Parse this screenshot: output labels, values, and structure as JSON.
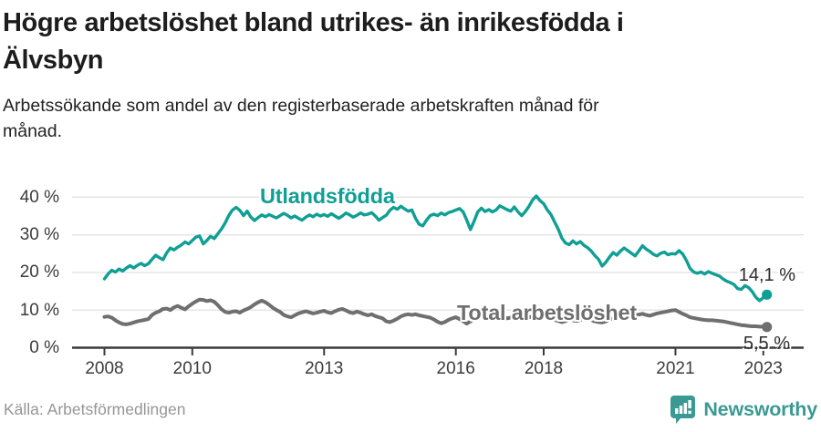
{
  "header": {
    "title": "Högre arbetslöshet bland utrikes- än inrikesfödda i Älvsbyn",
    "title_lines": [
      "Högre arbetslöshet bland utrikes- än inrikesfödda i",
      "Älvsbyn"
    ],
    "subtitle": "Arbetssökande som andel av den registerbaserade arbetskraften månad för månad.",
    "subtitle_lines": [
      "Arbetssökande som andel av den registerbaserade arbetskraften månad för",
      "månad."
    ]
  },
  "footer": {
    "source": "Källa: Arbetsförmedlingen",
    "brand": "Newsworthy"
  },
  "colors": {
    "series_foreign": "#0f9f95",
    "series_total": "#6f6f6f",
    "end_label_text": "#2b2b2b",
    "axis": "#3b3b3b",
    "grid": "#e3e3e3",
    "brand_teal": "#3a9a93",
    "title_text": "#1d1d1d",
    "muted_text": "#969696"
  },
  "chart_data": {
    "type": "line",
    "title": "Högre arbetslöshet bland utrikes- än inrikesfödda i Älvsbyn",
    "subtitle": "Arbetssökande som andel av den registerbaserade arbetskraften månad för månad.",
    "frequency": "monthly",
    "x_start": "2008-01",
    "x_end": "2023-02",
    "xlabel": "",
    "ylabel": "",
    "ylim": [
      0,
      43
    ],
    "grid": "horizontal",
    "legend_position": "inline-annotations",
    "y_tick_values": [
      0,
      10,
      20,
      30,
      40
    ],
    "y_tick_labels": [
      "0 %",
      "10 %",
      "20 %",
      "30 %",
      "40 %"
    ],
    "x_tick_values": [
      2008,
      2010,
      2013,
      2016,
      2018,
      2021,
      2023
    ],
    "x_tick_labels": [
      "2008",
      "2010",
      "2013",
      "2016",
      "2018",
      "2021",
      "2023"
    ],
    "series": [
      {
        "name": "Utlandsfödda",
        "color": "#0f9f95",
        "end_value": 14.1,
        "end_label": "14,1 %",
        "values": [
          18.3,
          19.6,
          20.6,
          20.1,
          20.9,
          20.4,
          21.2,
          21.8,
          21.2,
          21.9,
          22.4,
          21.8,
          22.3,
          23.5,
          24.6,
          23.9,
          23.4,
          25.2,
          26.5,
          26.0,
          26.7,
          27.3,
          28.1,
          27.6,
          28.5,
          29.4,
          29.7,
          27.6,
          28.5,
          29.6,
          29.0,
          30.3,
          31.6,
          33.2,
          35.2,
          36.6,
          37.3,
          36.5,
          35.1,
          36.3,
          34.7,
          33.8,
          34.6,
          35.3,
          34.8,
          35.4,
          34.9,
          34.5,
          35.1,
          35.7,
          35.2,
          34.5,
          35.0,
          34.4,
          33.9,
          34.7,
          35.3,
          34.8,
          35.5,
          35.0,
          35.4,
          34.9,
          35.6,
          35.0,
          34.4,
          35.0,
          35.8,
          35.3,
          34.7,
          35.2,
          35.8,
          35.3,
          35.5,
          35.9,
          35.0,
          33.9,
          34.6,
          35.2,
          36.5,
          37.3,
          36.8,
          37.6,
          36.9,
          36.3,
          36.6,
          34.4,
          32.8,
          32.4,
          33.9,
          35.1,
          35.5,
          35.1,
          35.8,
          35.3,
          35.9,
          36.2,
          36.6,
          37.0,
          36.1,
          33.9,
          31.4,
          33.6,
          36.1,
          37.1,
          36.2,
          36.7,
          36.1,
          36.6,
          37.7,
          37.2,
          36.7,
          36.3,
          37.4,
          36.1,
          35.1,
          36.2,
          37.6,
          39.3,
          40.3,
          39.1,
          38.3,
          36.6,
          35.4,
          33.4,
          31.5,
          29.1,
          27.8,
          27.4,
          28.4,
          27.6,
          28.2,
          27.2,
          26.6,
          25.7,
          24.5,
          23.5,
          21.7,
          22.7,
          24.1,
          25.3,
          24.6,
          25.7,
          26.5,
          25.8,
          25.1,
          24.4,
          25.7,
          27.1,
          26.2,
          25.6,
          24.8,
          24.4,
          25.1,
          25.4,
          24.7,
          25.0,
          24.9,
          25.8,
          24.9,
          23.2,
          21.1,
          20.1,
          19.8,
          20.1,
          19.6,
          20.2,
          19.8,
          19.4,
          19.1,
          18.3,
          17.7,
          17.3,
          16.8,
          15.7,
          15.5,
          16.5,
          16.0,
          14.9,
          13.4,
          12.5,
          13.3,
          14.1
        ]
      },
      {
        "name": "Total arbetslöshet",
        "color": "#6f6f6f",
        "end_value": 5.5,
        "end_label": "5,5 %",
        "values": [
          8.2,
          8.3,
          8.0,
          7.3,
          6.7,
          6.3,
          6.2,
          6.4,
          6.7,
          7.0,
          7.2,
          7.4,
          7.6,
          8.7,
          9.3,
          9.7,
          10.3,
          10.4,
          10.0,
          10.7,
          11.1,
          10.6,
          10.2,
          11.0,
          11.7,
          12.3,
          12.8,
          12.7,
          12.4,
          12.6,
          12.2,
          11.3,
          10.2,
          9.5,
          9.3,
          9.6,
          9.7,
          9.3,
          9.9,
          10.3,
          10.8,
          11.5,
          12.1,
          12.5,
          12.1,
          11.4,
          10.6,
          10.0,
          9.5,
          8.7,
          8.3,
          8.1,
          8.6,
          9.1,
          9.4,
          9.7,
          9.4,
          9.1,
          9.3,
          9.6,
          9.8,
          9.4,
          9.2,
          9.7,
          10.1,
          10.3,
          9.9,
          9.4,
          9.2,
          9.6,
          9.3,
          8.9,
          8.6,
          8.9,
          8.4,
          8.1,
          7.8,
          7.0,
          6.8,
          7.2,
          7.7,
          8.3,
          8.7,
          8.9,
          8.7,
          8.9,
          8.6,
          8.4,
          8.2,
          8.0,
          7.5,
          6.9,
          6.5,
          6.8,
          7.4,
          7.8,
          8.1,
          7.6,
          7.1,
          6.4,
          7.0,
          7.7,
          8.1,
          8.4,
          8.1,
          7.8,
          8.0,
          8.2,
          8.4,
          8.1,
          7.8,
          8.0,
          8.3,
          7.9,
          7.5,
          7.8,
          8.1,
          8.3,
          8.0,
          7.7,
          7.9,
          8.2,
          7.8,
          7.4,
          7.1,
          6.8,
          7.1,
          7.5,
          7.3,
          7.1,
          7.4,
          7.6,
          7.8,
          7.4,
          7.0,
          6.8,
          6.7,
          7.0,
          7.5,
          7.8,
          7.6,
          7.9,
          8.1,
          8.3,
          8.4,
          8.6,
          8.8,
          9.0,
          8.7,
          8.5,
          8.8,
          9.1,
          9.3,
          9.5,
          9.7,
          9.9,
          10.0,
          9.5,
          9.0,
          8.6,
          8.1,
          7.9,
          7.7,
          7.5,
          7.4,
          7.3,
          7.3,
          7.2,
          7.1,
          7.0,
          6.8,
          6.6,
          6.4,
          6.2,
          6.0,
          5.9,
          5.8,
          5.7,
          5.7,
          5.6,
          5.6,
          5.5
        ]
      }
    ]
  }
}
